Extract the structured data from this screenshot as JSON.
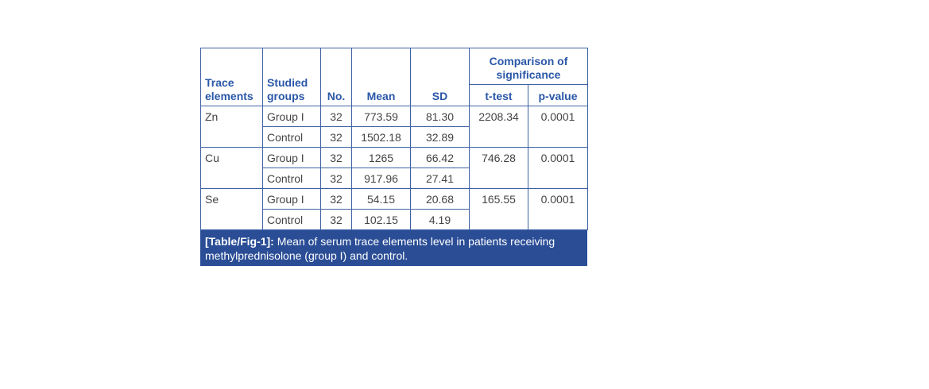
{
  "table": {
    "columns": [
      "Trace elements",
      "Studied groups",
      "No.",
      "Mean",
      "SD"
    ],
    "comparison": {
      "title": "Comparison of significance",
      "columns": [
        "t-test",
        "p-value"
      ]
    },
    "elements": [
      {
        "name": "Zn",
        "t_test": "2208.34",
        "p_value": "0.0001",
        "groups": [
          {
            "group": "Group I",
            "no": "32",
            "mean": "773.59",
            "sd": "81.30"
          },
          {
            "group": "Control",
            "no": "32",
            "mean": "1502.18",
            "sd": "32.89"
          }
        ]
      },
      {
        "name": "Cu",
        "t_test": "746.28",
        "p_value": "0.0001",
        "groups": [
          {
            "group": "Group I",
            "no": "32",
            "mean": "1265",
            "sd": "66.42"
          },
          {
            "group": "Control",
            "no": "32",
            "mean": "917.96",
            "sd": "27.41"
          }
        ]
      },
      {
        "name": "Se",
        "t_test": "165.55",
        "p_value": "0.0001",
        "groups": [
          {
            "group": "Group I",
            "no": "32",
            "mean": "54.15",
            "sd": "20.68"
          },
          {
            "group": "Control",
            "no": "32",
            "mean": "102.15",
            "sd": "4.19"
          }
        ]
      }
    ],
    "caption": {
      "label": "[Table/Fig-1]:",
      "text": "Mean of serum trace elements level in patients receiving methylprednisolone (group I) and control."
    }
  }
}
